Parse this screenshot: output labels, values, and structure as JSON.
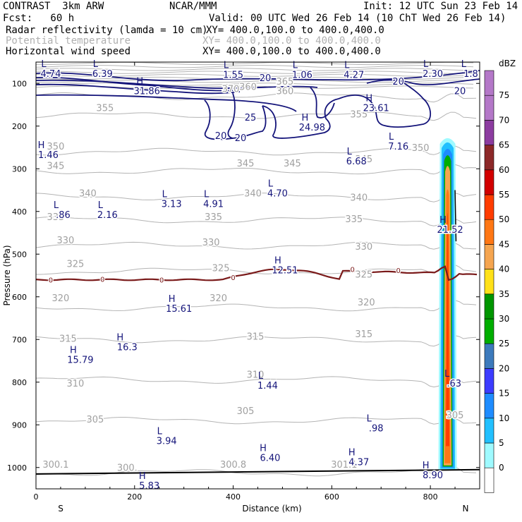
{
  "header": {
    "model": "CONTRAST  3km ARW",
    "org": "NCAR/MMM",
    "init": "Init: 12 UTC Sun 23 Feb 14",
    "fcst": "Fcst:   60 h",
    "valid": "Valid: 00 UTC Wed 26 Feb 14 (10 ChT Wed 26 Feb 14)",
    "fields": [
      {
        "name": "Radar reflectivity (lamda = 10 cm)",
        "xy": "XY= 400.0,100.0 to 400.0,400.0",
        "color": "#000000"
      },
      {
        "name": "Potential temperature",
        "xy": "XY= 400.0,100.0 to 400.0,400.0",
        "color": "#b0b0b0"
      },
      {
        "name": "Horizontal wind speed",
        "xy": "XY= 400.0,100.0 to 400.0,400.0",
        "color": "#000000"
      }
    ]
  },
  "chart_data": {
    "type": "cross-section contour",
    "xlabel": "Distance (km)",
    "ylabel": "Pressure (hPa)",
    "xlim": [
      0,
      900
    ],
    "ylim": [
      1050,
      50
    ],
    "x_ticks": [
      0,
      200,
      400,
      600,
      800
    ],
    "y_ticks": [
      100,
      200,
      300,
      400,
      500,
      600,
      700,
      800,
      900,
      1000
    ],
    "left_end_label": "S",
    "right_end_label": "N",
    "colorbar": {
      "unit": "dBZ",
      "levels": [
        0,
        5,
        10,
        15,
        20,
        25,
        30,
        35,
        40,
        45,
        50,
        55,
        60,
        65,
        70,
        75
      ],
      "colors": [
        "#ffffff",
        "#9ffaff",
        "#22c0ff",
        "#1e8cff",
        "#3c3cff",
        "#3c7abc",
        "#00ae00",
        "#009600",
        "#ffe119",
        "#f5a550",
        "#ff7714",
        "#ff3c00",
        "#d20000",
        "#8c2828",
        "#8c3ca0",
        "#b478c8",
        "#b478c8"
      ]
    },
    "theta_contours": [
      {
        "value": 300,
        "pressure": 1012
      },
      {
        "value": 305,
        "pressure": 890
      },
      {
        "value": 310,
        "pressure": 795
      },
      {
        "value": 315,
        "pressure": 700
      },
      {
        "value": 320,
        "pressure": 625
      },
      {
        "value": 325,
        "pressure": 540
      },
      {
        "value": 330,
        "pressure": 480
      },
      {
        "value": 335,
        "pressure": 420
      },
      {
        "value": 340,
        "pressure": 365
      },
      {
        "value": 345,
        "pressure": 305
      },
      {
        "value": 350,
        "pressure": 260
      },
      {
        "value": 355,
        "pressure": 175
      },
      {
        "value": 360,
        "pressure": 130
      }
    ],
    "theta_labels": [
      {
        "text": "300.1",
        "x": 40,
        "p": 1000
      },
      {
        "text": "300.8",
        "x": 400,
        "p": 1000
      },
      {
        "text": "301.1",
        "x": 625,
        "p": 1000
      },
      {
        "text": "300.",
        "x": 185,
        "p": 1008
      },
      {
        "text": "305",
        "x": 120,
        "p": 895
      },
      {
        "text": "305",
        "x": 425,
        "p": 875
      },
      {
        "text": "305",
        "x": 850,
        "p": 885
      },
      {
        "text": "310",
        "x": 80,
        "p": 810
      },
      {
        "text": "310",
        "x": 445,
        "p": 790
      },
      {
        "text": "315",
        "x": 65,
        "p": 705
      },
      {
        "text": "315",
        "x": 445,
        "p": 700
      },
      {
        "text": "315",
        "x": 665,
        "p": 695
      },
      {
        "text": "320",
        "x": 50,
        "p": 610
      },
      {
        "text": "320",
        "x": 370,
        "p": 610
      },
      {
        "text": "320",
        "x": 670,
        "p": 620
      },
      {
        "text": "325",
        "x": 80,
        "p": 530
      },
      {
        "text": "325",
        "x": 375,
        "p": 540
      },
      {
        "text": "325",
        "x": 665,
        "p": 555
      },
      {
        "text": "330",
        "x": 60,
        "p": 475
      },
      {
        "text": "330",
        "x": 355,
        "p": 480
      },
      {
        "text": "330",
        "x": 665,
        "p": 490
      },
      {
        "text": "335",
        "x": 40,
        "p": 420
      },
      {
        "text": "335",
        "x": 360,
        "p": 420
      },
      {
        "text": "335",
        "x": 645,
        "p": 425
      },
      {
        "text": "340",
        "x": 105,
        "p": 365
      },
      {
        "text": "340",
        "x": 440,
        "p": 365
      },
      {
        "text": "340",
        "x": 655,
        "p": 375
      },
      {
        "text": "345",
        "x": 40,
        "p": 300
      },
      {
        "text": "345",
        "x": 425,
        "p": 295
      },
      {
        "text": "345",
        "x": 520,
        "p": 295
      },
      {
        "text": "345",
        "x": 665,
        "p": 285
      },
      {
        "text": "350",
        "x": 40,
        "p": 255
      },
      {
        "text": "350",
        "x": 780,
        "p": 258
      },
      {
        "text": "355",
        "x": 140,
        "p": 165
      },
      {
        "text": "355",
        "x": 655,
        "p": 180
      },
      {
        "text": "360",
        "x": 430,
        "p": 115
      },
      {
        "text": "360",
        "x": 505,
        "p": 125
      },
      {
        "text": "365",
        "x": 505,
        "p": 103
      },
      {
        "text": "370",
        "x": 395,
        "p": 120
      }
    ],
    "wind_contours": [
      {
        "value": 20
      },
      {
        "value": 25
      }
    ],
    "wind_labels": [
      {
        "text": "20",
        "x": 465,
        "p": 95
      },
      {
        "text": "20",
        "x": 735,
        "p": 103
      },
      {
        "text": "20",
        "x": 860,
        "p": 125
      },
      {
        "text": "25",
        "x": 435,
        "p": 187
      },
      {
        "text": "20",
        "x": 375,
        "p": 230
      },
      {
        "text": "20",
        "x": 415,
        "p": 235
      }
    ],
    "zero_isotherm_labels": [
      {
        "text": "0",
        "x": 30,
        "p": 560
      },
      {
        "text": "0",
        "x": 135,
        "p": 558
      },
      {
        "text": "0",
        "x": 255,
        "p": 560
      },
      {
        "text": "0",
        "x": 400,
        "p": 554
      },
      {
        "text": "0",
        "x": 642,
        "p": 535
      },
      {
        "text": "0",
        "x": 735,
        "p": 538
      }
    ],
    "annotations": [
      {
        "mark": "L",
        "value": "4.74",
        "x": 30,
        "p": 85
      },
      {
        "mark": "L",
        "value": "6.39",
        "x": 135,
        "p": 85
      },
      {
        "mark": "L",
        "value": "1.55",
        "x": 400,
        "p": 87
      },
      {
        "mark": "L",
        "value": "1.06",
        "x": 540,
        "p": 87
      },
      {
        "mark": "L",
        "value": "4.27",
        "x": 645,
        "p": 87
      },
      {
        "mark": "L",
        "value": "2.30",
        "x": 805,
        "p": 85
      },
      {
        "mark": "L",
        "value": "1.8",
        "x": 882,
        "p": 85
      },
      {
        "mark": "H",
        "value": "31.86",
        "x": 225,
        "p": 125
      },
      {
        "mark": "H",
        "value": "23.61",
        "x": 690,
        "p": 165
      },
      {
        "mark": "H",
        "value": "24.98",
        "x": 560,
        "p": 210
      },
      {
        "mark": "H",
        "value": "1.46",
        "x": 25,
        "p": 275
      },
      {
        "mark": "L",
        "value": "6.68",
        "x": 650,
        "p": 290
      },
      {
        "mark": "L",
        "value": "7.16",
        "x": 735,
        "p": 255
      },
      {
        "mark": "L",
        "value": "4.70",
        "x": 490,
        "p": 365
      },
      {
        "mark": "L",
        "value": "3.13",
        "x": 275,
        "p": 390
      },
      {
        "mark": "L",
        "value": "4.91",
        "x": 360,
        "p": 390
      },
      {
        "mark": "L",
        "value": ".86",
        "x": 55,
        "p": 415
      },
      {
        "mark": "L",
        "value": "2.16",
        "x": 145,
        "p": 415
      },
      {
        "mark": "H",
        "value": "21.52",
        "x": 840,
        "p": 450
      },
      {
        "mark": "H",
        "value": "12.51",
        "x": 505,
        "p": 545
      },
      {
        "mark": "H",
        "value": "15.61",
        "x": 290,
        "p": 635
      },
      {
        "mark": "H",
        "value": "16.3",
        "x": 185,
        "p": 725
      },
      {
        "mark": "H",
        "value": "15.79",
        "x": 90,
        "p": 755
      },
      {
        "mark": "L",
        "value": ".63",
        "x": 848,
        "p": 810
      },
      {
        "mark": "L",
        "value": "1.44",
        "x": 470,
        "p": 815
      },
      {
        "mark": "L",
        "value": ".98",
        "x": 690,
        "p": 915
      },
      {
        "mark": "L",
        "value": "3.94",
        "x": 265,
        "p": 945
      },
      {
        "mark": "H",
        "value": "6.40",
        "x": 475,
        "p": 985
      },
      {
        "mark": "H",
        "value": "4.37",
        "x": 655,
        "p": 995
      },
      {
        "mark": "H",
        "value": "8.90",
        "x": 805,
        "p": 1025
      },
      {
        "mark": "H",
        "value": "5.83",
        "x": 230,
        "p": 1050
      }
    ]
  }
}
